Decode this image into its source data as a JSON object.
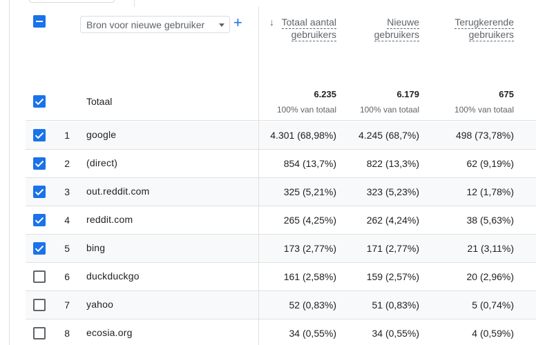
{
  "header": {
    "dimension_dropdown": "Bron voor nieuwe gebruiker",
    "columns": [
      {
        "line1": "Totaal aantal",
        "line2": "gebruikers",
        "sorted": true
      },
      {
        "line1": "Nieuwe",
        "line2": "gebruikers",
        "sorted": false
      },
      {
        "line1": "Terugkerende",
        "line2": "gebruikers",
        "sorted": false
      }
    ]
  },
  "totals": {
    "label": "Totaal",
    "values": [
      "6.235",
      "6.179",
      "675"
    ],
    "subs": [
      "100% van totaal",
      "100% van totaal",
      "100% van totaal"
    ]
  },
  "colors": {
    "accent": "#1a73e8",
    "row_shade": "#f8f9fa",
    "border": "#e0e0e0"
  },
  "rows": [
    {
      "index": "1",
      "source": "google",
      "checked": true,
      "total": "4.301 (68,98%)",
      "new": "4.245 (68,7%)",
      "returning": "498 (73,78%)"
    },
    {
      "index": "2",
      "source": "(direct)",
      "checked": true,
      "total": "854 (13,7%)",
      "new": "822 (13,3%)",
      "returning": "62 (9,19%)"
    },
    {
      "index": "3",
      "source": "out.reddit.com",
      "checked": true,
      "total": "325 (5,21%)",
      "new": "323 (5,23%)",
      "returning": "12 (1,78%)"
    },
    {
      "index": "4",
      "source": "reddit.com",
      "checked": true,
      "total": "265 (4,25%)",
      "new": "262 (4,24%)",
      "returning": "38 (5,63%)"
    },
    {
      "index": "5",
      "source": "bing",
      "checked": true,
      "total": "173 (2,77%)",
      "new": "171 (2,77%)",
      "returning": "21 (3,11%)"
    },
    {
      "index": "6",
      "source": "duckduckgo",
      "checked": false,
      "total": "161 (2,58%)",
      "new": "159 (2,57%)",
      "returning": "20 (2,96%)"
    },
    {
      "index": "7",
      "source": "yahoo",
      "checked": false,
      "total": "52 (0,83%)",
      "new": "51 (0,83%)",
      "returning": "5 (0,74%)"
    },
    {
      "index": "8",
      "source": "ecosia.org",
      "checked": false,
      "total": "34 (0,55%)",
      "new": "34 (0,55%)",
      "returning": "4 (0,59%)"
    }
  ]
}
